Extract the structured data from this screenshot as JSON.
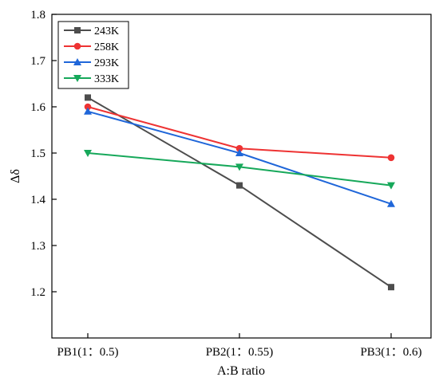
{
  "chart_data": {
    "type": "line",
    "categories": [
      "PB1(1：0.5)",
      "PB2(1：0.55)",
      "PB3(1：0.6)"
    ],
    "series": [
      {
        "name": "243K",
        "values": [
          1.62,
          1.43,
          1.21
        ],
        "color": "#4d4d4d",
        "marker": "square"
      },
      {
        "name": "258K",
        "values": [
          1.6,
          1.51,
          1.49
        ],
        "color": "#ee3333",
        "marker": "circle"
      },
      {
        "name": "293K",
        "values": [
          1.59,
          1.5,
          1.39
        ],
        "color": "#1f66d9",
        "marker": "triangle-up"
      },
      {
        "name": "333K",
        "values": [
          1.5,
          1.47,
          1.43
        ],
        "color": "#16a85a",
        "marker": "triangle-down"
      }
    ],
    "xlabel": "A:B ratio",
    "ylabel": "Δδ",
    "ylim": [
      1.1,
      1.8
    ],
    "yticks": [
      "1.2",
      "1.3",
      "1.4",
      "1.5",
      "1.6",
      "1.7",
      "1.8"
    ],
    "grid": false,
    "legend_position": "top-left"
  }
}
